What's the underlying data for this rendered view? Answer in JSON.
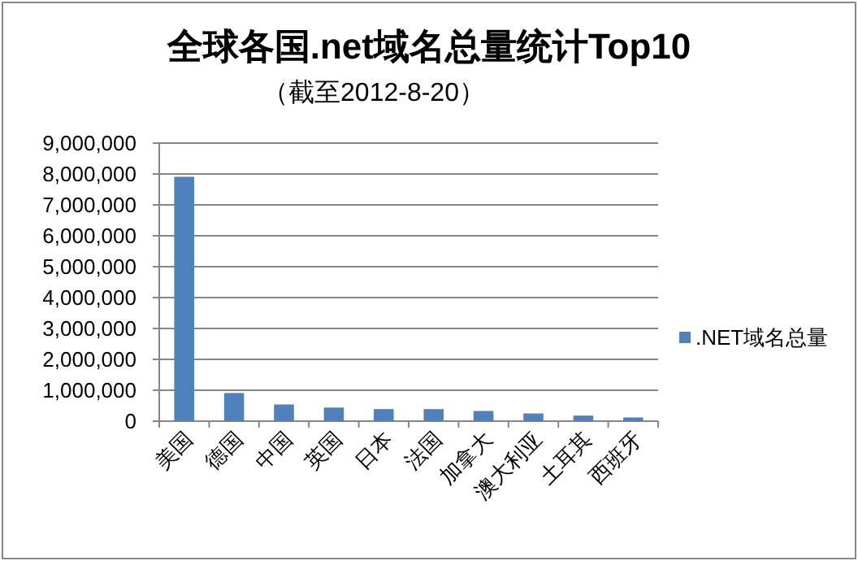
{
  "chart_data": {
    "type": "bar",
    "title": "全球各国.net域名总量统计Top10",
    "subtitle": "（截至2012-8-20）",
    "categories": [
      "美国",
      "德国",
      "中国",
      "英国",
      "日本",
      "法国",
      "加拿大",
      "澳大利亚",
      "土耳其",
      "西班牙"
    ],
    "series": [
      {
        "name": ".NET域名总量",
        "color": "#4f81bd",
        "values": [
          7910000,
          910000,
          540000,
          440000,
          390000,
          390000,
          330000,
          250000,
          180000,
          120000
        ]
      }
    ],
    "ylim": [
      0,
      9000000
    ],
    "yticks": [
      {
        "value": 0,
        "label": "0"
      },
      {
        "value": 1000000,
        "label": "1,000,000"
      },
      {
        "value": 2000000,
        "label": "2,000,000"
      },
      {
        "value": 3000000,
        "label": "3,000,000"
      },
      {
        "value": 4000000,
        "label": "4,000,000"
      },
      {
        "value": 5000000,
        "label": "5,000,000"
      },
      {
        "value": 6000000,
        "label": "6,000,000"
      },
      {
        "value": 7000000,
        "label": "7,000,000"
      },
      {
        "value": 8000000,
        "label": "8,000,000"
      },
      {
        "value": 9000000,
        "label": "9,000,000"
      }
    ],
    "grid": "y",
    "legend": "right"
  }
}
